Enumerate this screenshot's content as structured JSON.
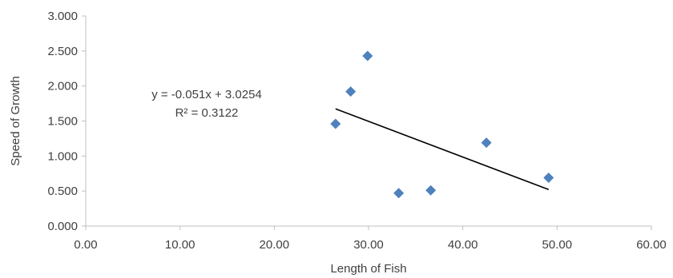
{
  "chart_data": {
    "type": "scatter",
    "title": "",
    "xlabel": "Length of Fish",
    "ylabel": "Speed of Growth",
    "xlim": [
      0,
      60
    ],
    "ylim": [
      0,
      3
    ],
    "x_ticks": [
      0,
      10,
      20,
      30,
      40,
      50,
      60
    ],
    "y_ticks": [
      0,
      0.5,
      1,
      1.5,
      2,
      2.5,
      3
    ],
    "x_tick_labels": [
      "0.00",
      "10.00",
      "20.00",
      "30.00",
      "40.00",
      "50.00",
      "60.00"
    ],
    "y_tick_labels": [
      "0.000",
      "0.500",
      "1.000",
      "1.500",
      "2.000",
      "2.500",
      "3.000"
    ],
    "grid": false,
    "legend": "none",
    "series": [
      {
        "marker": "diamond",
        "color": "#4F81BD",
        "points": [
          {
            "x": 26.5,
            "y": 1.46
          },
          {
            "x": 28.1,
            "y": 1.92
          },
          {
            "x": 29.9,
            "y": 2.43
          },
          {
            "x": 33.2,
            "y": 0.47
          },
          {
            "x": 36.6,
            "y": 0.51
          },
          {
            "x": 42.5,
            "y": 1.19
          },
          {
            "x": 49.1,
            "y": 0.69
          }
        ]
      }
    ],
    "trendline": {
      "type": "linear",
      "slope": -0.051,
      "intercept": 3.0254,
      "x_range": [
        26.5,
        49.1
      ],
      "color": "#000000",
      "equation_label": "y = -0.051x + 3.0254",
      "r2_label": "R² = 0.3122"
    }
  }
}
